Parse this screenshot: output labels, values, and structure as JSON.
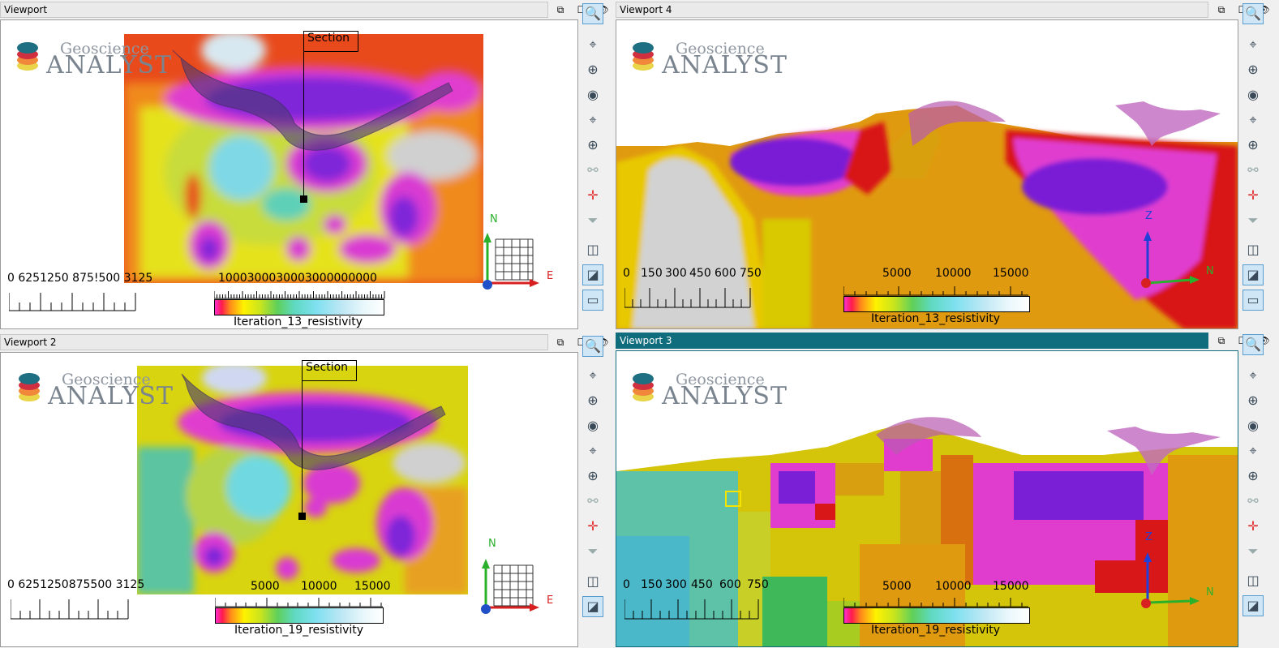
{
  "window_controls": {
    "restore": "⧉",
    "maximize": "☐",
    "hide": "👁"
  },
  "viewport1": {
    "title": "Viewport",
    "logo_top": "Geoscience",
    "logo_bottom": "ANALYST",
    "section_label": "Section",
    "scale_labels": "0    6251250 875!500 3125",
    "colorbar_numbers": "1000300030003000000000",
    "colorbar_name": "Iteration_13_resistivity",
    "axis_n": "N",
    "axis_e": "E"
  },
  "viewport2": {
    "title": "Viewport 2",
    "logo_top": "Geoscience",
    "logo_bottom": "ANALYST",
    "section_label": "Section",
    "scale_labels": "0  6251250875500 3125",
    "colorbar_numbers": [
      "5000",
      "10000",
      "15000"
    ],
    "colorbar_name": "Iteration_19_resistivity",
    "axis_n": "N",
    "axis_e": "E"
  },
  "viewport3": {
    "title": "Viewport 3",
    "logo_top": "Geoscience",
    "logo_bottom": "ANALYST",
    "scale_labels": [
      "0",
      "150",
      "300",
      "450",
      "600",
      "750"
    ],
    "colorbar_numbers": [
      "5000",
      "10000",
      "15000"
    ],
    "colorbar_name": "Iteration_19_resistivity",
    "axis_z": "Z",
    "axis_n": "N"
  },
  "viewport4": {
    "title": "Viewport 4",
    "logo_top": "Geoscience",
    "logo_bottom": "ANALYST",
    "scale_labels": [
      "0",
      "150",
      "300",
      "450",
      "600",
      "750"
    ],
    "colorbar_numbers": [
      "5000",
      "10000",
      "15000"
    ],
    "colorbar_name": "Iteration_13_resistivity",
    "axis_z": "Z",
    "axis_n": "N"
  },
  "toolbar_icons": [
    "zoom-extents-icon",
    "pan-icon",
    "rotate-icon",
    "target-icon",
    "orbit-icon",
    "orbit-alt-icon",
    "link-icon",
    "crosshair-icon",
    "section-filter-icon",
    "box-view-icon",
    "cube-view-icon",
    "scale-bar-icon"
  ],
  "colors": {
    "active_title": "#0f6d7d",
    "selected_tool": "#cfe6f7"
  }
}
